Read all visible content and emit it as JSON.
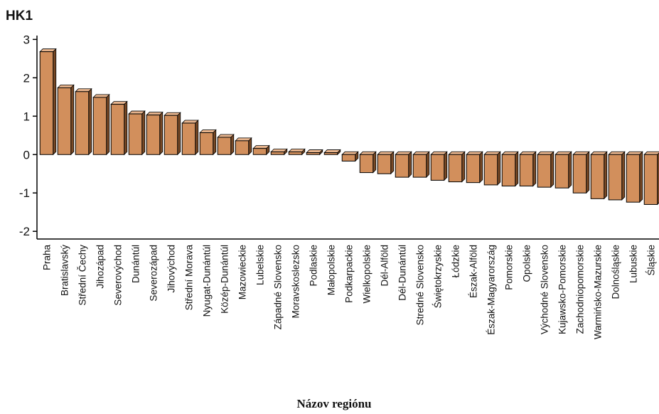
{
  "chart_data": {
    "type": "bar",
    "ylabel": "HK1",
    "xlabel": "Názov regiónu",
    "ylim": [
      -2.2,
      3.1
    ],
    "yticks": [
      3,
      2,
      1,
      0,
      -1,
      -2
    ],
    "grid": false,
    "bar_color": "#d28f5c",
    "categories": [
      "Praha",
      "Bratislavský",
      "Střední Čechy",
      "Jihozápad",
      "Severovýchod",
      "Dunántúl",
      "Severozápad",
      "Jihovýchod",
      "Střední Morava",
      "Nyugat-Dunántúl",
      "Közép-Dunántúl",
      "Mazowieckie",
      "Lubelskie",
      "Západné Slovensko",
      "Moravskoslezsko",
      "Podlaskie",
      "Małopolskie",
      "Podkarpackie",
      "Wielkopolskie",
      "Dél-Alföld",
      "Dél-Dunántúl",
      "Stredné Slovensko",
      "Świętokrzyskie",
      "Łódzkie",
      "Észak-Alföld",
      "Észak-Magyarország",
      "Pomorskie",
      "Opolskie",
      "Východné Slovensko",
      "Kujawsko-Pomorskie",
      "Zachodniopomorskie",
      "Warmińsko-Mazurskie",
      "Dolnośląskie",
      "Lubuskie",
      "Śląskie"
    ],
    "values": [
      2.68,
      1.74,
      1.64,
      1.49,
      1.31,
      1.06,
      1.03,
      1.02,
      0.82,
      0.57,
      0.45,
      0.36,
      0.16,
      0.07,
      0.07,
      0.05,
      0.05,
      -0.17,
      -0.47,
      -0.5,
      -0.59,
      -0.59,
      -0.67,
      -0.71,
      -0.73,
      -0.79,
      -0.82,
      -0.82,
      -0.85,
      -0.87,
      -1.0,
      -1.15,
      -1.18,
      -1.24,
      -1.3
    ]
  }
}
